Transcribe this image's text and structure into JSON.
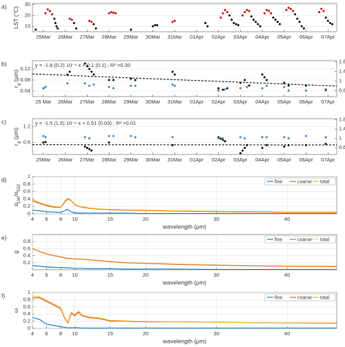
{
  "chart_data": [
    {
      "type": "scatter",
      "panel_label": "a)",
      "ylabel": [
        {
          "text": "LST (°C)"
        }
      ],
      "xlim": [
        -0.5,
        13.4
      ],
      "xticks": [
        {
          "value": 0,
          "label": "25Mar"
        },
        {
          "value": 1,
          "label": "26Mar"
        },
        {
          "value": 2,
          "label": "27Mar"
        },
        {
          "value": 3,
          "label": "28Mar"
        },
        {
          "value": 4,
          "label": "29Mar"
        },
        {
          "value": 5,
          "label": "30Mar"
        },
        {
          "value": 6,
          "label": "31Mar"
        },
        {
          "value": 7,
          "label": "01Apr"
        },
        {
          "value": 8,
          "label": "02Apr"
        },
        {
          "value": 9,
          "label": "03Apr"
        },
        {
          "value": 10,
          "label": "04Apr"
        },
        {
          "value": 11,
          "label": "05Apr"
        },
        {
          "value": 12,
          "label": "06Apr"
        },
        {
          "value": 13,
          "label": "07Apr"
        }
      ],
      "ylim": [
        5,
        31
      ],
      "yticks": [
        10,
        20,
        30
      ],
      "grid": "y",
      "series": [
        {
          "color": "#000000",
          "x": [
            -0.35,
            0.5,
            0.55,
            0.6,
            0.65,
            1.4,
            1.5,
            2.3,
            2.4,
            4.0,
            5.0,
            5.1,
            5.2,
            7.4,
            7.5,
            8.5,
            8.6,
            8.7,
            8.8,
            8.9,
            9.5,
            9.6,
            9.7,
            9.8,
            9.9,
            10.5,
            10.6,
            10.7,
            10.8,
            11.5,
            11.6,
            11.7,
            11.8,
            11.9,
            12.9,
            13.0,
            13.1,
            13.2
          ],
          "values": [
            7,
            17,
            13,
            10,
            8,
            13,
            8,
            12,
            8,
            7,
            10,
            11,
            11,
            13,
            10,
            20,
            16,
            13,
            12,
            11,
            19,
            16,
            14,
            12,
            10,
            18,
            16,
            14,
            12,
            21,
            17,
            14,
            10,
            8,
            18,
            15,
            13,
            12
          ]
        },
        {
          "color": "#c00000",
          "x": [
            0.1,
            0.2,
            0.3,
            0.4,
            1.2,
            1.3,
            2.1,
            2.2,
            3.0,
            3.1,
            3.2,
            3.3,
            5.9,
            6.0,
            8.1,
            8.2,
            8.3,
            8.4,
            9.1,
            9.2,
            9.3,
            9.4,
            10.1,
            10.2,
            10.3,
            10.4,
            11.1,
            11.2,
            11.3,
            11.4,
            12.6,
            12.7,
            12.8
          ],
          "values": [
            22,
            25.5,
            24,
            21,
            17,
            16,
            15,
            14,
            22,
            23,
            22.5,
            22,
            14,
            15,
            18,
            22,
            25,
            23,
            20,
            23,
            25,
            24,
            22,
            25,
            24,
            22,
            25,
            27,
            26,
            24,
            23,
            26,
            24
          ]
        }
      ]
    },
    {
      "type": "scatter",
      "panel_label": "b)",
      "ylabel": [
        {
          "text": "r"
        },
        {
          "sub": "g"
        },
        {
          "text": " (μm)"
        }
      ],
      "y2label": [
        {
          "text": "σ"
        },
        {
          "sub": "g"
        }
      ],
      "annotation": "y = -1.8 (0.2) 10⁻⁴ x + 0.1 (0.1) ; R² =0.30",
      "xlim": [
        -0.5,
        13.4
      ],
      "xticks": [
        {
          "value": 0,
          "label": "25 Mar"
        },
        {
          "value": 1,
          "label": "26Mar"
        },
        {
          "value": 2,
          "label": "27Mar"
        },
        {
          "value": 3,
          "label": "28Mar"
        },
        {
          "value": 4,
          "label": "29Mar"
        },
        {
          "value": 5,
          "label": "30Mar"
        },
        {
          "value": 6,
          "label": "31Mar"
        },
        {
          "value": 7,
          "label": "01Apr"
        },
        {
          "value": 8,
          "label": "02Apr"
        },
        {
          "value": 9,
          "label": "03Apr"
        },
        {
          "value": 10,
          "label": "04Apr"
        },
        {
          "value": 11,
          "label": "05Apr"
        },
        {
          "value": 12,
          "label": "06Apr"
        },
        {
          "value": 13,
          "label": "07Apr"
        }
      ],
      "ylim": [
        0.02,
        0.15
      ],
      "yticks": [
        0.04,
        0.08,
        0.12
      ],
      "y2lim": [
        0.35,
        1.85
      ],
      "y2ticks": [
        0.6,
        1,
        1.4,
        1.8
      ],
      "y2color": "#3a7fb8",
      "grid": "y",
      "series": [
        {
          "color": "#000000",
          "x": [
            0,
            0.1,
            1.1,
            1.2,
            1.9,
            2.0,
            2.1,
            2.2,
            2.3,
            3.0,
            3.2,
            4.0,
            4.2,
            5.9,
            6.0,
            8.0,
            8.2,
            8.4,
            9.0,
            9.2,
            9.4,
            10.0,
            10.1,
            10.2,
            11.0,
            11.2,
            12.0,
            12.9
          ],
          "values": [
            0.05,
            0.055,
            0.1,
            0.11,
            0.14,
            0.13,
            0.12,
            0.11,
            0.1,
            0.08,
            0.08,
            0.085,
            0.08,
            0.11,
            0.1,
            0.05,
            0.045,
            0.05,
            0.07,
            0.08,
            0.06,
            0.1,
            0.09,
            0.08,
            0.07,
            0.06,
            0.06,
            0.045
          ]
        },
        {
          "color": "#3a7fb8",
          "axis": "y2",
          "x": [
            0,
            0.1,
            1.1,
            1.9,
            2.1,
            2.3,
            3.0,
            3.2,
            4.0,
            4.2,
            5.9,
            6.0,
            8.0,
            8.3,
            9.0,
            9.3,
            10.0,
            10.2,
            11.0,
            11.2,
            12.0,
            12.9
          ],
          "values": [
            0.7,
            0.75,
            0.9,
            0.9,
            0.8,
            0.85,
            0.75,
            0.7,
            0.8,
            0.8,
            0.85,
            0.8,
            0.6,
            0.65,
            0.7,
            0.75,
            0.7,
            0.8,
            0.75,
            0.6,
            0.6,
            0.6
          ]
        }
      ],
      "fit": {
        "x": [
          -0.5,
          13.4
        ],
        "values": [
          0.102,
          0.058
        ]
      }
    },
    {
      "type": "scatter",
      "panel_label": "c)",
      "ylabel": [
        {
          "text": "r"
        },
        {
          "sub": "g"
        },
        {
          "text": " (μm)"
        }
      ],
      "y2label": [
        {
          "text": "σ"
        },
        {
          "sub": "g"
        }
      ],
      "annotation": "y = -1.5 (1.6) 10⁻⁶ x + 0.51 (0.03) ; R² =0.01",
      "xlim": [
        -0.5,
        13.4
      ],
      "xticks": [
        {
          "value": 0,
          "label": "25Mar"
        },
        {
          "value": 1,
          "label": "26Mar"
        },
        {
          "value": 2,
          "label": "27Mar"
        },
        {
          "value": 3,
          "label": "28Mar"
        },
        {
          "value": 4,
          "label": "29Mar"
        },
        {
          "value": 5,
          "label": "30Mar"
        },
        {
          "value": 6,
          "label": "31Mar"
        },
        {
          "value": 7,
          "label": "01Apr"
        },
        {
          "value": 8,
          "label": "02Apr"
        },
        {
          "value": 9,
          "label": "03Apr"
        },
        {
          "value": 10,
          "label": "04Apr"
        },
        {
          "value": 11,
          "label": "05Apr"
        },
        {
          "value": 12,
          "label": "06Apr"
        },
        {
          "value": 13,
          "label": "07Apr"
        }
      ],
      "ylim": [
        0.15,
        1.5
      ],
      "yticks": [
        0.6,
        1.2
      ],
      "y2lim": [
        0.3,
        1.85
      ],
      "y2ticks": [
        0.6,
        1,
        1.4,
        1.8
      ],
      "y2color": "#3a7fb8",
      "grid": "y",
      "series": [
        {
          "color": "#000000",
          "x": [
            0,
            0.1,
            1.9,
            2.0,
            2.1,
            2.2,
            3.0,
            5.9,
            8.0,
            8.1,
            8.2,
            8.3,
            9.0,
            9.1,
            9.2,
            9.3,
            10.0,
            10.2,
            11.0,
            11.2,
            12.0,
            12.9
          ],
          "values": [
            0.6,
            0.62,
            0.45,
            0.4,
            0.35,
            0.3,
            0.6,
            0.5,
            0.8,
            0.75,
            0.7,
            0.65,
            0.2,
            0.3,
            0.4,
            0.5,
            0.4,
            0.5,
            0.45,
            0.5,
            0.5,
            0.55
          ]
        },
        {
          "color": "#3a7fb8",
          "axis": "y2",
          "x": [
            0,
            0.1,
            1.9,
            2.1,
            3.0,
            3.2,
            4.0,
            4.2,
            5.9,
            8.0,
            8.2,
            9.0,
            9.2,
            10.0,
            10.2,
            11.0,
            11.2,
            12.0,
            12.9
          ],
          "values": [
            1.1,
            1.05,
            1.05,
            1.0,
            1.1,
            1.1,
            1.1,
            1.05,
            1.05,
            1.0,
            1.0,
            1.05,
            1.0,
            1.05,
            1.05,
            1.05,
            1.0,
            1.1,
            1.05
          ]
        }
      ],
      "fit": {
        "x": [
          -0.5,
          13.4
        ],
        "values": [
          0.52,
          0.51
        ]
      }
    },
    {
      "type": "line",
      "panel_label": "d)",
      "ylabel": [
        {
          "text": "α"
        },
        {
          "sub": "LW"
        },
        {
          "text": "/α"
        },
        {
          "sub": "532"
        }
      ],
      "xlabel": "wavelength (μm)",
      "xlim": [
        4,
        47
      ],
      "xticks": [
        4,
        6,
        8,
        10,
        15,
        20,
        30,
        40
      ],
      "ylim": [
        0,
        1
      ],
      "yticks": [
        0,
        0.2,
        0.4,
        0.6,
        0.8,
        1
      ],
      "grid": "both",
      "legend": "upper right",
      "x": [
        4,
        5,
        6,
        7,
        8,
        8.5,
        9,
        9.5,
        10,
        10.5,
        11,
        12,
        13,
        14,
        15,
        17,
        20,
        25,
        30,
        35,
        40,
        47
      ],
      "series": [
        {
          "name": "fine",
          "color": "#0072bd",
          "values": [
            0.1,
            0.08,
            0.06,
            0.05,
            0.04,
            0.08,
            0.12,
            0.05,
            0.03,
            0.02,
            0.02,
            0.02,
            0.02,
            0.02,
            0.02,
            0.02,
            0.01,
            0.01,
            0.01,
            0.01,
            0.01,
            0.01
          ]
        },
        {
          "name": "coarse",
          "color": "#d95319",
          "values": [
            0.35,
            0.28,
            0.22,
            0.18,
            0.17,
            0.3,
            0.4,
            0.35,
            0.25,
            0.2,
            0.18,
            0.15,
            0.13,
            0.12,
            0.11,
            0.1,
            0.09,
            0.07,
            0.06,
            0.05,
            0.04,
            0.04
          ]
        },
        {
          "name": "total",
          "color": "#edb120",
          "values": [
            0.38,
            0.3,
            0.24,
            0.2,
            0.18,
            0.32,
            0.42,
            0.36,
            0.26,
            0.21,
            0.19,
            0.16,
            0.14,
            0.13,
            0.12,
            0.11,
            0.1,
            0.08,
            0.07,
            0.06,
            0.05,
            0.05
          ]
        }
      ]
    },
    {
      "type": "line",
      "panel_label": "e)",
      "ylabel": [
        {
          "text": "g"
        }
      ],
      "xlabel": "wavelength (μm)",
      "xlim": [
        4,
        47
      ],
      "xticks": [
        4,
        6,
        8,
        10,
        15,
        20,
        30,
        40
      ],
      "ylim": [
        0,
        1
      ],
      "yticks": [
        0.2,
        0.4,
        0.6,
        0.8
      ],
      "grid": "both",
      "legend": "upper right",
      "x": [
        4,
        5,
        6,
        7,
        8,
        8.5,
        9,
        9.5,
        10,
        10.5,
        11,
        12,
        13,
        14,
        15,
        17,
        20,
        25,
        30,
        35,
        40,
        47
      ],
      "series": [
        {
          "name": "fine",
          "color": "#0072bd",
          "values": [
            0.12,
            0.1,
            0.08,
            0.07,
            0.06,
            0.06,
            0.05,
            0.05,
            0.04,
            0.04,
            0.04,
            0.03,
            0.03,
            0.03,
            0.03,
            0.02,
            0.02,
            0.02,
            0.01,
            0.01,
            0.01,
            0.01
          ]
        },
        {
          "name": "coarse",
          "color": "#d95319",
          "values": [
            0.6,
            0.52,
            0.45,
            0.4,
            0.36,
            0.34,
            0.32,
            0.32,
            0.3,
            0.3,
            0.3,
            0.28,
            0.26,
            0.25,
            0.23,
            0.2,
            0.18,
            0.15,
            0.13,
            0.11,
            0.1,
            0.09
          ]
        },
        {
          "name": "total",
          "color": "#edb120",
          "linestyle": "dashed",
          "values": [
            0.61,
            0.53,
            0.46,
            0.41,
            0.37,
            0.35,
            0.33,
            0.33,
            0.31,
            0.31,
            0.31,
            0.29,
            0.27,
            0.26,
            0.24,
            0.21,
            0.19,
            0.16,
            0.14,
            0.12,
            0.11,
            0.1
          ]
        }
      ]
    },
    {
      "type": "line",
      "panel_label": "f)",
      "ylabel": [
        {
          "text": "ω"
        }
      ],
      "xlabel": "wavelength (μm)",
      "xlim": [
        4,
        47
      ],
      "xticks": [
        4,
        6,
        8,
        10,
        15,
        20,
        30,
        40
      ],
      "ylim": [
        0,
        1
      ],
      "yticks": [
        0,
        0.2,
        0.4,
        0.6,
        0.8,
        1
      ],
      "grid": "both",
      "legend": "upper right",
      "x": [
        4,
        5,
        6,
        7,
        8,
        8.5,
        9,
        9.5,
        10,
        10.5,
        11,
        12,
        13,
        14,
        15,
        17,
        20,
        25,
        30,
        35,
        40,
        47
      ],
      "series": [
        {
          "name": "fine",
          "color": "#0072bd",
          "values": [
            0.3,
            0.25,
            0.12,
            0.08,
            0.05,
            0.03,
            0.02,
            0.02,
            0.02,
            0.02,
            0.01,
            0.01,
            0.01,
            0.01,
            0.01,
            0.01,
            0.01,
            0.01,
            0.01,
            0.01,
            0.01,
            0.01
          ]
        },
        {
          "name": "coarse",
          "color": "#d95319",
          "values": [
            0.85,
            0.85,
            0.75,
            0.65,
            0.55,
            0.3,
            0.15,
            0.42,
            0.35,
            0.45,
            0.35,
            0.3,
            0.28,
            0.25,
            0.2,
            0.2,
            0.18,
            0.18,
            0.17,
            0.16,
            0.15,
            0.14
          ]
        },
        {
          "name": "total",
          "color": "#edb120",
          "values": [
            0.9,
            0.88,
            0.78,
            0.68,
            0.58,
            0.32,
            0.17,
            0.45,
            0.38,
            0.48,
            0.37,
            0.32,
            0.3,
            0.27,
            0.22,
            0.21,
            0.19,
            0.18,
            0.17,
            0.16,
            0.15,
            0.15
          ]
        }
      ]
    }
  ]
}
